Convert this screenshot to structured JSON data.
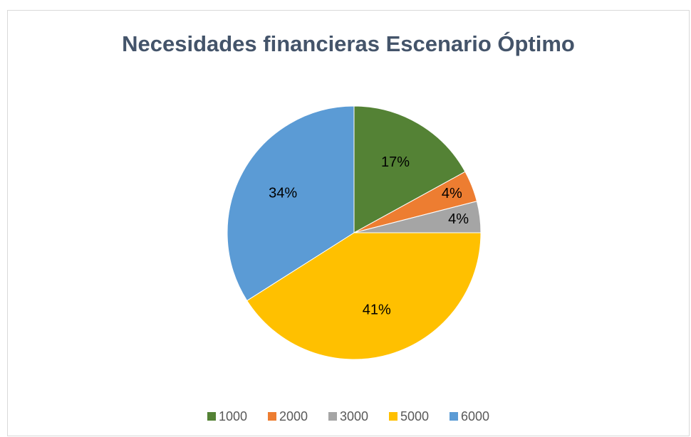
{
  "chart_data": {
    "type": "pie",
    "title": "Necesidades financieras Escenario Óptimo",
    "categories": [
      "1000",
      "2000",
      "3000",
      "5000",
      "6000"
    ],
    "values": [
      17,
      4,
      4,
      41,
      34
    ],
    "value_labels": [
      "17%",
      "4%",
      "4%",
      "41%",
      "34%"
    ],
    "colors": [
      "#548235",
      "#ed7d31",
      "#a5a5a5",
      "#ffc000",
      "#5b9bd5"
    ],
    "legend": "bottom"
  }
}
